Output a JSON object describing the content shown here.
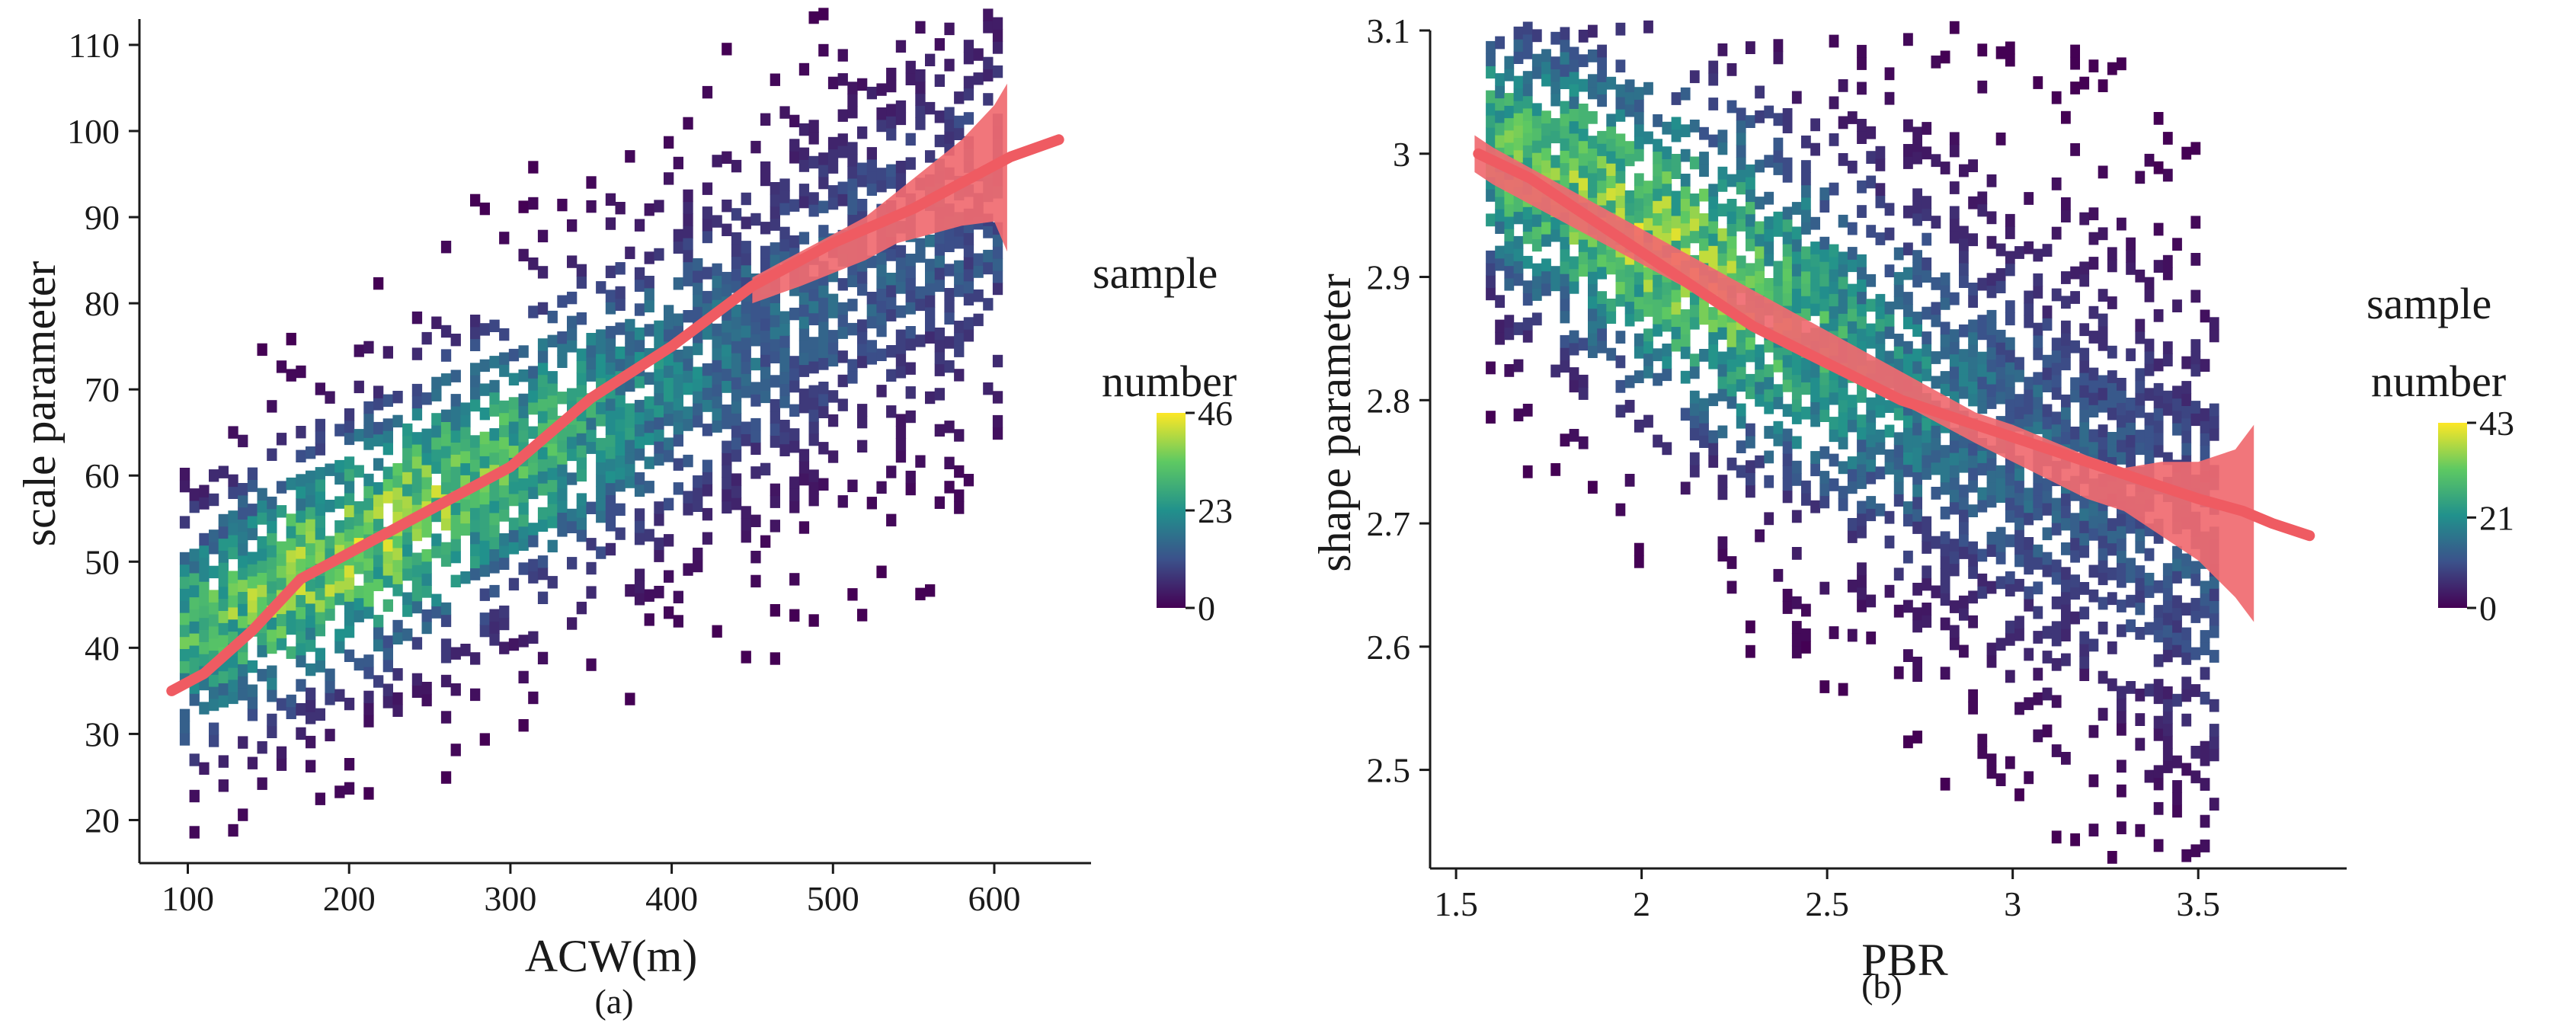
{
  "colors": {
    "trend": "#ef5b62",
    "band": "#f06a70",
    "viridis": [
      "#440154",
      "#3b528b",
      "#21918c",
      "#5ec962",
      "#fde725"
    ]
  },
  "chart_data": [
    {
      "panel": "a",
      "type": "heatmap",
      "caption": "(a)",
      "xlabel": "ACW(m)",
      "ylabel": "scale parameter",
      "xlim": [
        70,
        660
      ],
      "ylim": [
        15,
        113
      ],
      "xticks": [
        100,
        200,
        300,
        400,
        500,
        600
      ],
      "xtick_labels": [
        "100",
        "200",
        "300",
        "400",
        "500",
        "600"
      ],
      "yticks": [
        20,
        30,
        40,
        50,
        60,
        70,
        80,
        90,
        100,
        110
      ],
      "ytick_labels": [
        "20",
        "30",
        "40",
        "50",
        "60",
        "70",
        "80",
        "90",
        "100",
        "110"
      ],
      "legend_title": [
        "sample",
        "number"
      ],
      "colorbar_ticks": [
        0,
        23,
        46
      ],
      "colorbar_tick_labels": [
        "0",
        "23",
        "46"
      ],
      "trend": {
        "x": [
          90,
          110,
          140,
          170,
          200,
          250,
          300,
          350,
          400,
          450,
          500,
          550,
          600,
          610,
          640
        ],
        "y": [
          35,
          37,
          42,
          48,
          51,
          56,
          61,
          69,
          75,
          82,
          87,
          91,
          96,
          97,
          99
        ]
      },
      "uncertainty_band": {
        "x": [
          450,
          480,
          500,
          520,
          540,
          560,
          580,
          600,
          608
        ],
        "lower": [
          80,
          82,
          83.5,
          85,
          87,
          88,
          89,
          89.5,
          86
        ],
        "upper": [
          83,
          86,
          88,
          90,
          93,
          96,
          99,
          103,
          105.5
        ]
      },
      "density_model": {
        "x_range": [
          95,
          600
        ],
        "center_x": 200,
        "slope": 0.1,
        "intercept": 31,
        "spread_y": 8.5,
        "peak_count": 46,
        "bin_x": 6,
        "bin_y": 1.4
      }
    },
    {
      "panel": "b",
      "type": "heatmap",
      "caption": "(b)",
      "xlabel": "PBR",
      "ylabel": "shape parameter",
      "xlim": [
        1.43,
        3.9
      ],
      "ylim": [
        2.42,
        3.1
      ],
      "xticks": [
        1.5,
        2,
        2.5,
        3,
        3.5
      ],
      "xtick_labels": [
        "1.5",
        "2",
        "2.5",
        "3",
        "3.5"
      ],
      "yticks": [
        2.5,
        2.6,
        2.7,
        2.8,
        2.9,
        3.0,
        3.1
      ],
      "ytick_labels": [
        "2.5",
        "2.6",
        "2.7",
        "2.8",
        "2.9",
        "3",
        "3.1"
      ],
      "legend_title": [
        "sample",
        "number"
      ],
      "colorbar_ticks": [
        0,
        21,
        43
      ],
      "colorbar_tick_labels": [
        "0",
        "21",
        "43"
      ],
      "trend": {
        "x": [
          1.56,
          1.7,
          1.9,
          2.1,
          2.3,
          2.5,
          2.7,
          2.9,
          3.1,
          3.3,
          3.5,
          3.62,
          3.7,
          3.8
        ],
        "y": [
          3.0,
          2.98,
          2.94,
          2.9,
          2.86,
          2.83,
          2.8,
          2.78,
          2.76,
          2.74,
          2.72,
          2.71,
          2.7,
          2.69
        ]
      },
      "uncertainty_band": {
        "x": [
          1.55,
          1.6,
          2.9,
          3.0,
          3.2,
          3.3,
          3.4,
          3.5,
          3.6,
          3.65
        ],
        "lower": [
          2.985,
          2.975,
          2.765,
          2.75,
          2.72,
          2.71,
          2.69,
          2.67,
          2.64,
          2.62
        ],
        "upper": [
          3.015,
          3.005,
          2.79,
          2.78,
          2.755,
          2.745,
          2.75,
          2.75,
          2.76,
          2.78
        ]
      },
      "density_model": {
        "x_range": [
          1.58,
          3.55
        ],
        "center_x": 2.0,
        "slope": -0.17,
        "intercept": 3.27,
        "spread_y": 0.075,
        "peak_count": 43,
        "bin_x": 0.025,
        "bin_y": 0.01
      }
    }
  ]
}
